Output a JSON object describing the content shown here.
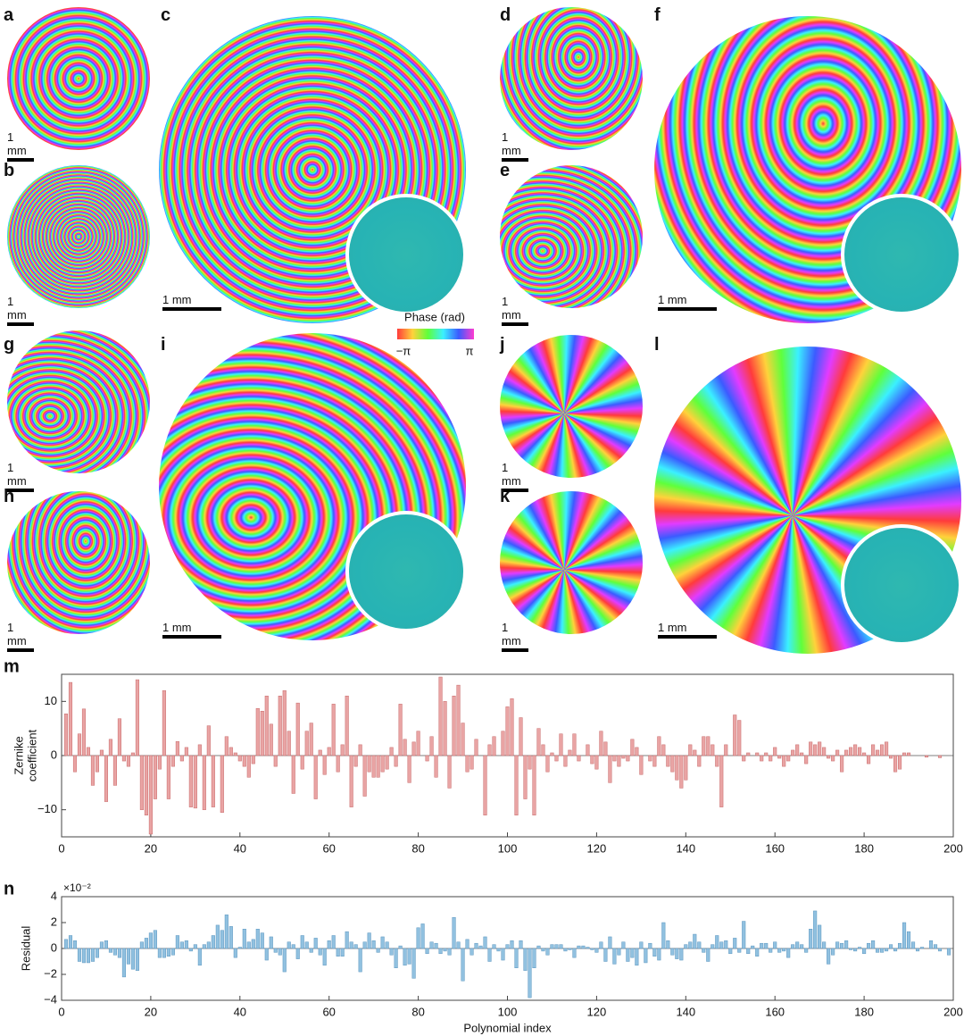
{
  "panels": [
    {
      "label": "a",
      "scale": "1 mm"
    },
    {
      "label": "b",
      "scale": "1 mm"
    },
    {
      "label": "c",
      "scale": "1 mm"
    },
    {
      "label": "d",
      "scale": "1 mm"
    },
    {
      "label": "e",
      "scale": "1 mm"
    },
    {
      "label": "f",
      "scale": "1 mm"
    },
    {
      "label": "g",
      "scale": "1 mm"
    },
    {
      "label": "h",
      "scale": "1 mm"
    },
    {
      "label": "i",
      "scale": "1 mm"
    },
    {
      "label": "j",
      "scale": "1 mm"
    },
    {
      "label": "k",
      "scale": "1 mm"
    },
    {
      "label": "l",
      "scale": "1 mm"
    }
  ],
  "colorbar": {
    "title": "Phase (rad)",
    "min_label": "−π",
    "max_label": "π"
  },
  "chart_data": [
    {
      "type": "bar",
      "label": "m",
      "ylabel": [
        "Zernike",
        "coefficient"
      ],
      "color": "#e9a4a4",
      "edge": "#c86a6a",
      "xlim": [
        0,
        200
      ],
      "xticks": [
        0,
        20,
        40,
        60,
        80,
        100,
        120,
        140,
        160,
        180,
        200
      ],
      "ylim": [
        -15,
        15
      ],
      "yticks": [
        {
          "value": -10,
          "label": "−10"
        },
        0,
        10
      ],
      "x": [
        1,
        2,
        3,
        4,
        5,
        6,
        7,
        8,
        9,
        10,
        11,
        12,
        13,
        14,
        15,
        16,
        17,
        18,
        19,
        20,
        21,
        22,
        23,
        24,
        25,
        26,
        27,
        28,
        29,
        30,
        31,
        32,
        33,
        34,
        35,
        36,
        37,
        38,
        39,
        40,
        41,
        42,
        43,
        44,
        45,
        46,
        47,
        48,
        49,
        50,
        51,
        52,
        53,
        54,
        55,
        56,
        57,
        58,
        59,
        60,
        61,
        62,
        63,
        64,
        65,
        66,
        67,
        68,
        69,
        70,
        71,
        72,
        73,
        74,
        75,
        76,
        77,
        78,
        79,
        80,
        81,
        82,
        83,
        84,
        85,
        86,
        87,
        88,
        89,
        90,
        91,
        92,
        93,
        94,
        95,
        96,
        97,
        98,
        99,
        100,
        101,
        102,
        103,
        104,
        105,
        106,
        107,
        108,
        109,
        110,
        111,
        112,
        113,
        114,
        115,
        116,
        117,
        118,
        119,
        120,
        121,
        122,
        123,
        124,
        125,
        126,
        127,
        128,
        129,
        130,
        131,
        132,
        133,
        134,
        135,
        136,
        137,
        138,
        139,
        140,
        141,
        142,
        143,
        144,
        145,
        146,
        147,
        148,
        149,
        150,
        151,
        152,
        153,
        154,
        155,
        156,
        157,
        158,
        159,
        160,
        161,
        162,
        163,
        164,
        165,
        166,
        167,
        168,
        169,
        170,
        171,
        172,
        173,
        174,
        175,
        176,
        177,
        178,
        179,
        180,
        181,
        182,
        183,
        184,
        185,
        186,
        187,
        188,
        189,
        190,
        191,
        192,
        193,
        194,
        195,
        196,
        197,
        198,
        199
      ],
      "values": [
        7.7,
        13.5,
        -3,
        4,
        8.6,
        1.5,
        -5.5,
        -3,
        1,
        -8.5,
        3,
        -5.5,
        6.8,
        -1,
        -2,
        0.5,
        14,
        -10,
        -11,
        -14.5,
        -8,
        -2.5,
        12,
        -8,
        -2,
        2.6,
        -1,
        1.5,
        -9.5,
        -9.7,
        2,
        -10,
        5.5,
        -9.5,
        0,
        -10.5,
        3.5,
        1.5,
        0.5,
        -1,
        -2,
        -4,
        -1.5,
        8.7,
        8.2,
        11,
        5.8,
        -2,
        11,
        12,
        4.5,
        -7,
        9.7,
        -2.5,
        4.5,
        6,
        -8,
        1,
        -3.5,
        1.5,
        9.5,
        -3,
        2,
        11,
        -9.5,
        -2,
        2,
        -7.5,
        -3,
        -4,
        -4,
        -3,
        -2.5,
        1.5,
        -2,
        9.5,
        3,
        -5,
        2.5,
        4.5,
        0,
        -1,
        3.5,
        -4,
        14.5,
        10,
        -6,
        11,
        13,
        6,
        -3,
        -2.5,
        3,
        0,
        -11,
        2,
        3.5,
        0,
        4.5,
        9,
        10.5,
        -11,
        7,
        -8,
        -2.5,
        -11,
        5,
        2,
        -3,
        0.5,
        -1,
        4,
        -2,
        1,
        4,
        -1,
        0,
        2,
        -1.5,
        -2.5,
        4.5,
        2.5,
        -5,
        -1,
        -2,
        -0.5,
        -1,
        3,
        1.5,
        -3.5,
        0,
        -1,
        -2,
        3.5,
        2,
        -2,
        -3,
        -4.5,
        -6,
        -4.5,
        2,
        1,
        -2,
        3.5,
        3.5,
        2,
        -2,
        -9.5,
        2,
        0,
        7.5,
        6.5,
        -1,
        0.5,
        0,
        0.5,
        -1,
        0.5,
        -1,
        1.5,
        -0.5,
        -2,
        -1,
        1,
        2,
        0.5,
        -1.5,
        2.5,
        2,
        2.5,
        1.5,
        -0.5,
        -1,
        1,
        -3,
        1,
        1.5,
        2,
        1.5,
        0.5,
        -1.5,
        2,
        1,
        2,
        2.5,
        -0.5,
        -3,
        -2.5,
        0.5,
        0.5,
        0,
        0,
        0,
        -0.3,
        0,
        0,
        -0.4,
        0,
        0
      ]
    },
    {
      "type": "bar",
      "label": "n",
      "ylabel": "Residual",
      "xlabel": "Polynomial index",
      "y_multiplier": "×10⁻²",
      "color": "#91c1e0",
      "edge": "#5a95bf",
      "xlim": [
        0,
        200
      ],
      "xticks": [
        0,
        20,
        40,
        60,
        80,
        100,
        120,
        140,
        160,
        180,
        200
      ],
      "ylim": [
        -4,
        4
      ],
      "yticks": [
        {
          "value": -4,
          "label": "−4"
        },
        {
          "value": -2,
          "label": "−2"
        },
        0,
        2,
        4
      ],
      "x": [
        1,
        2,
        3,
        4,
        5,
        6,
        7,
        8,
        9,
        10,
        11,
        12,
        13,
        14,
        15,
        16,
        17,
        18,
        19,
        20,
        21,
        22,
        23,
        24,
        25,
        26,
        27,
        28,
        29,
        30,
        31,
        32,
        33,
        34,
        35,
        36,
        37,
        38,
        39,
        40,
        41,
        42,
        43,
        44,
        45,
        46,
        47,
        48,
        49,
        50,
        51,
        52,
        53,
        54,
        55,
        56,
        57,
        58,
        59,
        60,
        61,
        62,
        63,
        64,
        65,
        66,
        67,
        68,
        69,
        70,
        71,
        72,
        73,
        74,
        75,
        76,
        77,
        78,
        79,
        80,
        81,
        82,
        83,
        84,
        85,
        86,
        87,
        88,
        89,
        90,
        91,
        92,
        93,
        94,
        95,
        96,
        97,
        98,
        99,
        100,
        101,
        102,
        103,
        104,
        105,
        106,
        107,
        108,
        109,
        110,
        111,
        112,
        113,
        114,
        115,
        116,
        117,
        118,
        119,
        120,
        121,
        122,
        123,
        124,
        125,
        126,
        127,
        128,
        129,
        130,
        131,
        132,
        133,
        134,
        135,
        136,
        137,
        138,
        139,
        140,
        141,
        142,
        143,
        144,
        145,
        146,
        147,
        148,
        149,
        150,
        151,
        152,
        153,
        154,
        155,
        156,
        157,
        158,
        159,
        160,
        161,
        162,
        163,
        164,
        165,
        166,
        167,
        168,
        169,
        170,
        171,
        172,
        173,
        174,
        175,
        176,
        177,
        178,
        179,
        180,
        181,
        182,
        183,
        184,
        185,
        186,
        187,
        188,
        189,
        190,
        191,
        192,
        193,
        194,
        195,
        196,
        197,
        198,
        199
      ],
      "values": [
        0.7,
        1,
        0.6,
        -1,
        -1.1,
        -1.1,
        -1,
        -0.7,
        0.5,
        0.6,
        -0.3,
        -0.5,
        -0.7,
        -2.2,
        -1.2,
        -1.6,
        -1.7,
        0.5,
        0.8,
        1.2,
        1.4,
        -0.7,
        -0.7,
        -0.6,
        -0.5,
        1,
        0.5,
        0.6,
        -0.2,
        0.3,
        -1.3,
        0.3,
        0.5,
        1,
        1.8,
        1.4,
        2.6,
        1.7,
        -0.7,
        0.1,
        1.5,
        0.5,
        0.7,
        1.5,
        1.2,
        -0.9,
        0.9,
        -0.3,
        -0.5,
        -1.8,
        0.5,
        0.3,
        -0.8,
        1,
        0.5,
        -0.3,
        0.8,
        -0.5,
        -1.3,
        0.6,
        1,
        -0.6,
        -0.6,
        1.3,
        0.5,
        0.3,
        -1.8,
        0.5,
        1.2,
        0.6,
        -0.3,
        0.9,
        0.5,
        -0.5,
        -1.5,
        0.2,
        -1.3,
        -1.2,
        -2.3,
        1.6,
        1.9,
        -0.4,
        0.5,
        0.4,
        -0.4,
        -0.2,
        -0.5,
        2.4,
        0.5,
        -2.5,
        0.7,
        -0.5,
        0.4,
        0.2,
        0.9,
        -1,
        0.3,
        -0.2,
        -0.9,
        0.3,
        0.6,
        -1.5,
        0.6,
        -1.7,
        -3.8,
        -1.5,
        0.2,
        -0.2,
        -0.5,
        0.3,
        0.3,
        0.3,
        -0.2,
        -0.1,
        -0.7,
        0.2,
        0.2,
        0.1,
        -0.1,
        -0.3,
        0.5,
        -1,
        0.9,
        -1.2,
        -0.5,
        0.5,
        -1,
        -0.7,
        -1.3,
        0.5,
        -1.1,
        0.4,
        -0.6,
        -0.9,
        2,
        0.6,
        -0.5,
        -0.8,
        -0.9,
        0.3,
        0.5,
        1.1,
        0.5,
        -0.3,
        -1,
        0.3,
        1,
        0.5,
        0.6,
        -0.4,
        0.8,
        -0.3,
        2.1,
        -0.4,
        0.2,
        -0.6,
        0.4,
        0.4,
        -0.3,
        0.5,
        -0.3,
        -0.2,
        -0.7,
        0.3,
        0.5,
        0.3,
        -0.3,
        1.5,
        2.9,
        1.8,
        0.5,
        -1.2,
        -0.5,
        0.5,
        0.4,
        0.6,
        -0.1,
        -0.2,
        0.1,
        -0.4,
        0.4,
        0.6,
        -0.3,
        -0.3,
        -0.2,
        0.3,
        -0.2,
        0.4,
        2,
        1.3,
        0.5,
        -0.2,
        0.1,
        0,
        0.6,
        0.3,
        -0.2,
        0,
        -0.5
      ]
    }
  ]
}
